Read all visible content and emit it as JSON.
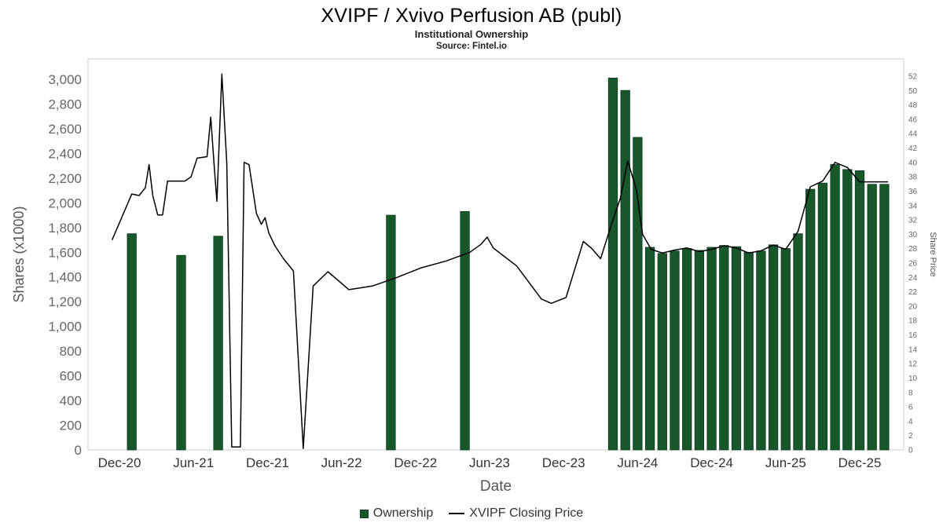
{
  "title": "XVIPF / Xvivo Perfusion AB (publ)",
  "subtitle": "Institutional Ownership",
  "source": "Source: Fintel.io",
  "colors": {
    "bar": "#17572b",
    "bar_border": "#0f3d1e",
    "line": "#000000",
    "axis_tick_text": "#666666",
    "x_tick_text": "#333333",
    "axis_title_text": "#555555",
    "plot_border": "#cccccc"
  },
  "legend": [
    {
      "label": "Ownership",
      "swatch": "square"
    },
    {
      "label": "XVIPF Closing Price",
      "swatch": "line"
    }
  ],
  "chart_data": {
    "type": "combo-bar-line",
    "x_unit": "months since Dec-2020",
    "xlabel": "Date",
    "x_ticks": [
      {
        "t": 0,
        "label": "Dec-20"
      },
      {
        "t": 6,
        "label": "Jun-21"
      },
      {
        "t": 12,
        "label": "Dec-21"
      },
      {
        "t": 18,
        "label": "Jun-22"
      },
      {
        "t": 24,
        "label": "Dec-22"
      },
      {
        "t": 30,
        "label": "Jun-23"
      },
      {
        "t": 36,
        "label": "Dec-23"
      },
      {
        "t": 42,
        "label": "Jun-24"
      },
      {
        "t": 48,
        "label": "Dec-24"
      },
      {
        "t": 54,
        "label": "Jun-25"
      },
      {
        "t": 60,
        "label": "Dec-25"
      }
    ],
    "left_axis": {
      "label": "Shares (x1000)",
      "min": 0,
      "max": 3000,
      "tick_step": 200
    },
    "right_axis": {
      "label": "Share Price",
      "min": 0,
      "max": 52,
      "tick_step": 2
    },
    "grid": false,
    "legend_position": "bottom",
    "bars": {
      "name": "Ownership",
      "points": [
        {
          "date": "Jan-21",
          "t": 1,
          "value": 1750
        },
        {
          "date": "May-21",
          "t": 5,
          "value": 1575
        },
        {
          "date": "Aug-21",
          "t": 8,
          "value": 1730
        },
        {
          "date": "Oct-22",
          "t": 22,
          "value": 1900
        },
        {
          "date": "Apr-23",
          "t": 28,
          "value": 1930
        },
        {
          "date": "Apr-24",
          "t": 40,
          "value": 3010
        },
        {
          "date": "May-24",
          "t": 41,
          "value": 2910
        },
        {
          "date": "Jun-24",
          "t": 42,
          "value": 2530
        },
        {
          "date": "Jul-24",
          "t": 43,
          "value": 1640
        },
        {
          "date": "Aug-24",
          "t": 44,
          "value": 1590
        },
        {
          "date": "Sep-24",
          "t": 45,
          "value": 1610
        },
        {
          "date": "Oct-24",
          "t": 46,
          "value": 1630
        },
        {
          "date": "Nov-24",
          "t": 47,
          "value": 1615
        },
        {
          "date": "Dec-24",
          "t": 48,
          "value": 1640
        },
        {
          "date": "Jan-25",
          "t": 49,
          "value": 1655
        },
        {
          "date": "Feb-25",
          "t": 50,
          "value": 1645
        },
        {
          "date": "Mar-25",
          "t": 51,
          "value": 1600
        },
        {
          "date": "Apr-25",
          "t": 52,
          "value": 1610
        },
        {
          "date": "May-25",
          "t": 53,
          "value": 1660
        },
        {
          "date": "Jun-25",
          "t": 54,
          "value": 1630
        },
        {
          "date": "Jul-25",
          "t": 55,
          "value": 1750
        },
        {
          "date": "Aug-25",
          "t": 56,
          "value": 2110
        },
        {
          "date": "Sep-25",
          "t": 57,
          "value": 2160
        },
        {
          "date": "Oct-25",
          "t": 58,
          "value": 2310
        },
        {
          "date": "Nov-25",
          "t": 59,
          "value": 2270
        },
        {
          "date": "Dec-25",
          "t": 60,
          "value": 2260
        },
        {
          "date": "Jan-26",
          "t": 61,
          "value": 2150
        },
        {
          "date": "Feb-26",
          "t": 62,
          "value": 2150
        }
      ]
    },
    "line": {
      "name": "XVIPF Closing Price",
      "points": [
        [
          -0.6,
          29.2
        ],
        [
          1,
          35.6
        ],
        [
          1.6,
          35.4
        ],
        [
          2.1,
          36.5
        ],
        [
          2.4,
          39.7
        ],
        [
          2.7,
          35.4
        ],
        [
          3.1,
          32.7
        ],
        [
          3.5,
          32.7
        ],
        [
          3.9,
          37.4
        ],
        [
          5.3,
          37.4
        ],
        [
          5.8,
          38.0
        ],
        [
          6.3,
          40.6
        ],
        [
          7.1,
          40.8
        ],
        [
          7.4,
          46.3
        ],
        [
          7.7,
          39.0
        ],
        [
          7.9,
          34.6
        ],
        [
          8.3,
          52.3
        ],
        [
          8.7,
          39.9
        ],
        [
          9.1,
          0.4
        ],
        [
          9.8,
          0.4
        ],
        [
          10.1,
          40.0
        ],
        [
          10.5,
          39.7
        ],
        [
          11.1,
          32.9
        ],
        [
          11.5,
          31.4
        ],
        [
          11.8,
          32.3
        ],
        [
          12.1,
          30.2
        ],
        [
          12.6,
          28.4
        ],
        [
          13.3,
          26.6
        ],
        [
          14.1,
          24.9
        ],
        [
          14.9,
          0.2
        ],
        [
          15.7,
          22.8
        ],
        [
          16.9,
          24.8
        ],
        [
          18.6,
          22.3
        ],
        [
          20.5,
          22.8
        ],
        [
          22.5,
          24.0
        ],
        [
          24.4,
          25.3
        ],
        [
          26.5,
          26.3
        ],
        [
          28.4,
          27.5
        ],
        [
          29.3,
          28.6
        ],
        [
          29.8,
          29.6
        ],
        [
          30.3,
          28.1
        ],
        [
          32.2,
          25.6
        ],
        [
          34.2,
          21.0
        ],
        [
          35.0,
          20.4
        ],
        [
          36.2,
          21.2
        ],
        [
          37.6,
          29.0
        ],
        [
          38.3,
          28.0
        ],
        [
          39.0,
          26.6
        ],
        [
          39.9,
          31.5
        ],
        [
          40.6,
          35.0
        ],
        [
          41.2,
          40.2
        ],
        [
          41.9,
          36.2
        ],
        [
          42.4,
          30.0
        ],
        [
          43.1,
          27.9
        ],
        [
          44.0,
          27.4
        ],
        [
          45.0,
          27.8
        ],
        [
          46.0,
          28.1
        ],
        [
          47.0,
          27.6
        ],
        [
          48.0,
          27.9
        ],
        [
          49.0,
          28.4
        ],
        [
          50.0,
          28.1
        ],
        [
          51.0,
          27.4
        ],
        [
          52.0,
          27.7
        ],
        [
          53.0,
          28.5
        ],
        [
          54.0,
          27.9
        ],
        [
          55.0,
          30.4
        ],
        [
          56.0,
          36.6
        ],
        [
          57.0,
          37.4
        ],
        [
          58.0,
          40.0
        ],
        [
          59.0,
          39.3
        ],
        [
          60.0,
          37.3
        ],
        [
          62.3,
          37.3
        ]
      ]
    }
  }
}
